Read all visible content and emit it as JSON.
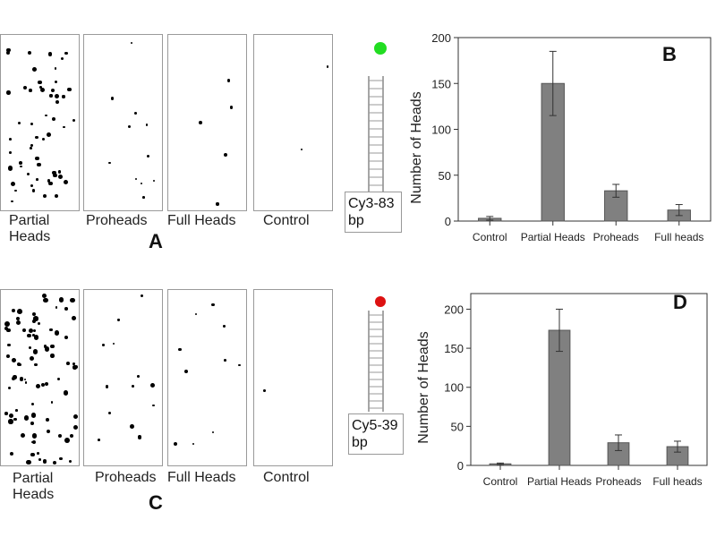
{
  "top": {
    "panel_captions": [
      "Partial Heads",
      "Proheads",
      "Full Heads",
      "Control"
    ],
    "panel_letter": "A",
    "probe_label": "Cy3-83 bp",
    "probe_color": "#22dd22"
  },
  "bottom": {
    "panel_captions": [
      "Partial Heads",
      "Proheads",
      "Full Heads",
      "Control"
    ],
    "panel_letter": "C",
    "probe_label": "Cy5-39 bp",
    "probe_color": "#dd1111"
  },
  "chart_data": [
    {
      "type": "bar",
      "panel": "B",
      "categories": [
        "Control",
        "Partial Heads",
        "Proheads",
        "Full heads"
      ],
      "values": [
        3,
        150,
        33,
        12
      ],
      "errors": [
        2,
        35,
        7,
        6
      ],
      "title": "",
      "xlabel": "",
      "ylabel": "Number of Heads",
      "ylim": [
        0,
        200
      ],
      "yticks": [
        0,
        50,
        100,
        150,
        200
      ],
      "bar_color": "#808080"
    },
    {
      "type": "bar",
      "panel": "D",
      "categories": [
        "Control",
        "Partial Heads",
        "Proheads",
        "Full heads"
      ],
      "values": [
        2,
        173,
        29,
        24
      ],
      "errors": [
        1,
        27,
        10,
        7
      ],
      "title": "",
      "xlabel": "",
      "ylabel": "Number of Heads",
      "ylim": [
        0,
        220
      ],
      "yticks": [
        0,
        50,
        100,
        150,
        200
      ],
      "bar_color": "#808080"
    }
  ]
}
